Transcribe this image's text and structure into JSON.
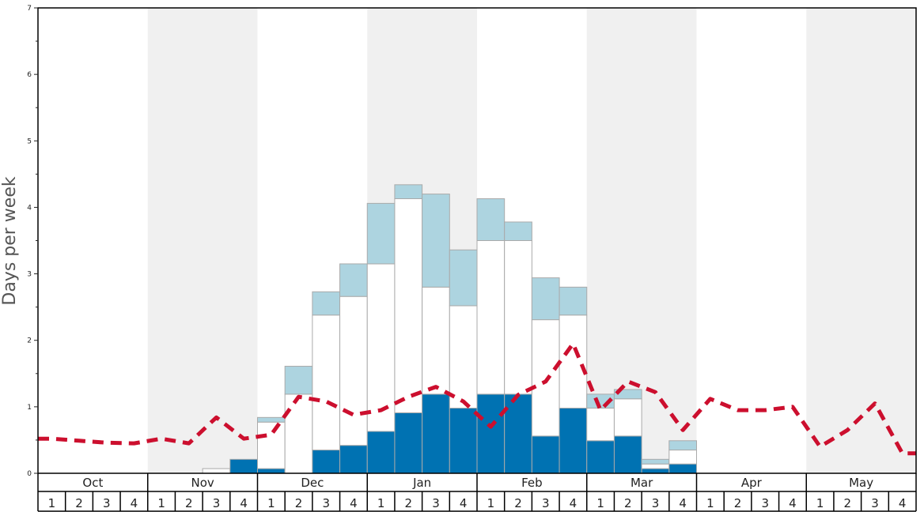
{
  "chart_data": {
    "type": "bar",
    "ylabel": "Days per week",
    "ylim": [
      0,
      7
    ],
    "yticks": [
      0,
      1,
      2,
      3,
      4,
      5,
      6,
      7
    ],
    "months": [
      "Oct",
      "Nov",
      "Dec",
      "Jan",
      "Feb",
      "Mar",
      "Apr",
      "May"
    ],
    "weeks": [
      "1",
      "2",
      "3",
      "4"
    ],
    "colors": {
      "dark": "#0072b2",
      "white": "#ffffff",
      "light": "#add4e0",
      "line": "#cc0f2e",
      "band": "#f0f0f0",
      "bar_edge": "#aaaaaa"
    },
    "series": [
      {
        "values": [
          0,
          0,
          0,
          0,
          0,
          0,
          0,
          0.21,
          0.07,
          0,
          0.35,
          0.42,
          0.63,
          0.91,
          1.19,
          0.98,
          1.19,
          1.19,
          0.56,
          0.98,
          0.49,
          0.56,
          0.07,
          0.14,
          0,
          0,
          0,
          0,
          0,
          0,
          0,
          0
        ]
      },
      {
        "values": [
          0,
          0,
          0,
          0,
          0,
          0,
          0.07,
          0,
          0.7,
          1.19,
          2.03,
          2.24,
          2.52,
          3.22,
          1.61,
          1.54,
          2.31,
          2.31,
          1.75,
          1.4,
          0.49,
          0.56,
          0.07,
          0.21,
          0,
          0,
          0,
          0,
          0,
          0,
          0,
          0
        ]
      },
      {
        "values": [
          0,
          0,
          0,
          0,
          0,
          0,
          0,
          0,
          0.07,
          0.42,
          0.35,
          0.49,
          0.91,
          0.21,
          1.4,
          0.84,
          0.63,
          0.28,
          0.63,
          0.42,
          0.21,
          0.14,
          0.07,
          0.14,
          0,
          0,
          0,
          0,
          0,
          0,
          0,
          0
        ]
      },
      {
        "type": "line",
        "values": [
          0.52,
          0.49,
          0.46,
          0.45,
          0.52,
          0.45,
          0.84,
          0.52,
          0.58,
          1.15,
          1.08,
          0.88,
          0.95,
          1.15,
          1.3,
          1.08,
          0.7,
          1.18,
          1.38,
          1.95,
          0.95,
          1.38,
          1.22,
          0.65,
          1.12,
          0.95,
          0.95,
          1.0,
          0.4,
          0.65,
          1.05,
          0.3
        ]
      }
    ]
  }
}
